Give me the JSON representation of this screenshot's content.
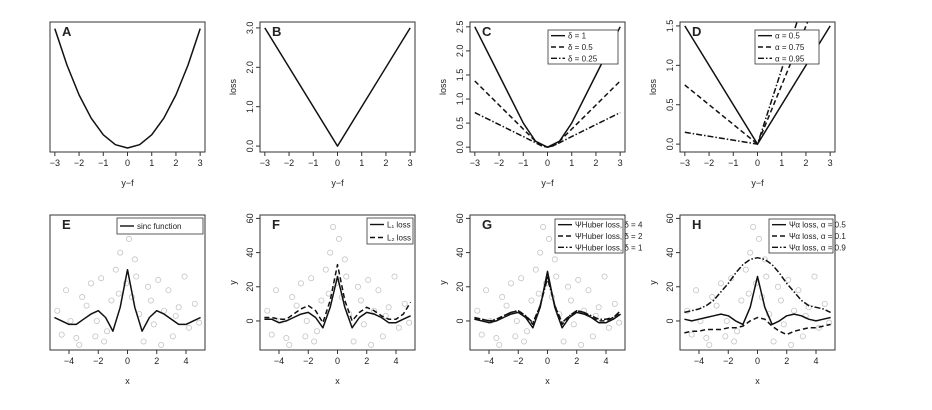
{
  "chart_data": [
    {
      "type": "line",
      "panel": "A",
      "xlabel": "y−f",
      "ylabel": "",
      "xlim": [
        -3.2,
        3.2
      ],
      "ylim": [
        -0.3,
        9.5
      ],
      "xticks": [
        -3,
        -2,
        -1,
        0,
        1,
        2,
        3
      ],
      "yticks": [],
      "legend": null,
      "series": [
        {
          "style": "solid",
          "x": [
            -3,
            -2.5,
            -2,
            -1.5,
            -1,
            -0.5,
            0,
            0.5,
            1,
            1.5,
            2,
            2.5,
            3
          ],
          "y": [
            9,
            6.25,
            4,
            2.25,
            1,
            0.25,
            0,
            0.25,
            1,
            2.25,
            4,
            6.25,
            9
          ]
        }
      ]
    },
    {
      "type": "line",
      "panel": "B",
      "xlabel": "y−f",
      "ylabel": "loss",
      "xlim": [
        -3.2,
        3.2
      ],
      "ylim": [
        -0.15,
        3.15
      ],
      "xticks": [
        -3,
        -2,
        -1,
        0,
        1,
        2,
        3
      ],
      "yticks": [
        0.0,
        1.0,
        2.0,
        3.0
      ],
      "ytick_labels": [
        "0.0",
        "1.0",
        "2.0",
        "3.0"
      ],
      "legend": null,
      "series": [
        {
          "style": "solid",
          "x": [
            -3,
            0,
            3
          ],
          "y": [
            3,
            0,
            3
          ]
        }
      ]
    },
    {
      "type": "line",
      "panel": "C",
      "xlabel": "y−f",
      "ylabel": "loss",
      "xlim": [
        -3.2,
        3.2
      ],
      "ylim": [
        -0.1,
        2.6
      ],
      "xticks": [
        -3,
        -2,
        -1,
        0,
        1,
        2,
        3
      ],
      "yticks": [
        0.0,
        0.5,
        1.0,
        1.5,
        2.0,
        2.5
      ],
      "ytick_labels": [
        "0.0",
        "0.5",
        "1.0",
        "1.5",
        "2.0",
        "2.5"
      ],
      "legend": {
        "position": "top-center"
      },
      "series": [
        {
          "name": "δ = 1",
          "style": "solid",
          "x": [
            -3,
            -2,
            -1,
            -0.5,
            0,
            0.5,
            1,
            2,
            3
          ],
          "y": [
            2.5,
            1.5,
            0.5,
            0.125,
            0,
            0.125,
            0.5,
            1.5,
            2.5
          ]
        },
        {
          "name": "δ = 0.5",
          "style": "dashed",
          "x": [
            -3,
            -2,
            -1,
            -0.5,
            -0.25,
            0,
            0.25,
            0.5,
            1,
            2,
            3
          ],
          "y": [
            1.375,
            0.875,
            0.375,
            0.125,
            0.031,
            0,
            0.031,
            0.125,
            0.375,
            0.875,
            1.375
          ]
        },
        {
          "name": "δ = 0.25",
          "style": "dotdash",
          "x": [
            -3,
            -2,
            -1,
            -0.25,
            0,
            0.25,
            1,
            2,
            3
          ],
          "y": [
            0.719,
            0.469,
            0.219,
            0.031,
            0,
            0.031,
            0.219,
            0.469,
            0.719
          ]
        }
      ]
    },
    {
      "type": "line",
      "panel": "D",
      "xlabel": "y−f",
      "ylabel": "loss",
      "xlim": [
        -3.2,
        3.2
      ],
      "ylim": [
        -0.1,
        1.55
      ],
      "xticks": [
        -3,
        -2,
        -1,
        0,
        1,
        2,
        3
      ],
      "yticks": [
        0.0,
        0.5,
        1.0,
        1.5
      ],
      "ytick_labels": [
        "0.0",
        "0.5",
        "1.0",
        "1.5"
      ],
      "legend": {
        "position": "top-center"
      },
      "series": [
        {
          "name": "α = 0.5",
          "style": "solid",
          "x": [
            -3,
            0,
            3
          ],
          "y": [
            1.5,
            0,
            1.5
          ]
        },
        {
          "name": "α = 0.75",
          "style": "dashed",
          "x": [
            -3,
            0,
            2.07
          ],
          "y": [
            0.75,
            0,
            1.55
          ]
        },
        {
          "name": "α = 0.95",
          "style": "dotdash",
          "x": [
            -3,
            0,
            1.63
          ],
          "y": [
            0.15,
            0,
            1.55
          ]
        }
      ]
    },
    {
      "type": "scatter+line",
      "panel": "E",
      "xlabel": "x",
      "ylabel": "",
      "xlim": [
        -5.3,
        5.3
      ],
      "ylim": [
        -17,
        62
      ],
      "xticks": [
        -4,
        -2,
        0,
        2,
        4
      ],
      "yticks": [],
      "legend": {
        "position": "top-right"
      },
      "series": [
        {
          "name": "sinc function",
          "style": "solid",
          "x": [
            -5,
            -4.5,
            -4,
            -3.5,
            -3,
            -2.5,
            -2,
            -1.5,
            -1,
            -0.5,
            0,
            0.5,
            1,
            1.5,
            2,
            2.5,
            3,
            3.5,
            4,
            4.5,
            5
          ],
          "y": [
            2,
            0,
            -2,
            -2,
            1,
            4,
            6,
            2,
            -6,
            8,
            30,
            8,
            -6,
            2,
            6,
            4,
            1,
            -2,
            -2,
            0,
            2
          ]
        }
      ],
      "scatter": {
        "x": [
          -4.8,
          -4.5,
          -4.2,
          -3.9,
          -3.5,
          -3.1,
          -2.8,
          -2.5,
          -2.1,
          -1.8,
          -1.4,
          -1.1,
          -0.8,
          -0.5,
          -0.3,
          -0.1,
          0.1,
          0.3,
          0.5,
          0.8,
          1.1,
          1.4,
          1.8,
          2.1,
          2.5,
          2.8,
          3.1,
          3.5,
          3.9,
          4.2,
          4.6,
          4.9,
          -3.3,
          -1.6,
          -0.6,
          0.6,
          1.6,
          3.3,
          -2.2,
          2.3
        ],
        "y": [
          6,
          -8,
          18,
          0,
          -10,
          14,
          9,
          22,
          0,
          25,
          -6,
          12,
          30,
          40,
          55,
          22,
          48,
          14,
          36,
          4,
          -12,
          20,
          -2,
          24,
          6,
          18,
          -9,
          8,
          26,
          -4,
          10,
          -1,
          -14,
          -12,
          16,
          26,
          12,
          3,
          -9,
          -14
        ]
      }
    },
    {
      "type": "scatter+line",
      "panel": "F",
      "xlabel": "x",
      "ylabel": "y",
      "xlim": [
        -5.3,
        5.3
      ],
      "ylim": [
        -17,
        62
      ],
      "xticks": [
        -4,
        -2,
        0,
        2,
        4
      ],
      "yticks": [
        0,
        20,
        40,
        60
      ],
      "ytick_labels": [
        "0",
        "20",
        "40",
        "60"
      ],
      "legend": {
        "position": "top-right"
      },
      "series": [
        {
          "name": "L₁ loss",
          "style": "solid",
          "x": [
            -5,
            -4.5,
            -4,
            -3.5,
            -3,
            -2.5,
            -2,
            -1.5,
            -1,
            -0.5,
            0,
            0.5,
            1,
            1.5,
            2,
            2.5,
            3,
            3.5,
            4,
            4.5,
            5
          ],
          "y": [
            1,
            1,
            -1,
            0,
            2,
            4,
            5,
            2,
            -4,
            8,
            26,
            8,
            -4,
            2,
            5,
            4,
            2,
            -1,
            -1,
            1,
            3
          ]
        },
        {
          "name": "L₂ loss",
          "style": "dashed",
          "x": [
            -5,
            -4.5,
            -4,
            -3.5,
            -3,
            -2.5,
            -2,
            -1.5,
            -1,
            -0.5,
            0,
            0.5,
            1,
            1.5,
            2,
            2.5,
            3,
            3.5,
            4,
            4.5,
            5
          ],
          "y": [
            2,
            2,
            1,
            1,
            4,
            7,
            9,
            6,
            -1,
            12,
            33,
            12,
            0,
            5,
            8,
            6,
            3,
            1,
            1,
            4,
            11
          ]
        }
      ],
      "scatter": {
        "x": [
          -4.8,
          -4.5,
          -4.2,
          -3.9,
          -3.5,
          -3.1,
          -2.8,
          -2.5,
          -2.1,
          -1.8,
          -1.4,
          -1.1,
          -0.8,
          -0.5,
          -0.3,
          -0.1,
          0.1,
          0.3,
          0.5,
          0.8,
          1.1,
          1.4,
          1.8,
          2.1,
          2.5,
          2.8,
          3.1,
          3.5,
          3.9,
          4.2,
          4.6,
          4.9,
          -3.3,
          -1.6,
          -0.6,
          0.6,
          1.6,
          3.3,
          -2.2,
          2.3
        ],
        "y": [
          6,
          -8,
          18,
          0,
          -10,
          14,
          9,
          22,
          0,
          25,
          -6,
          12,
          30,
          40,
          55,
          22,
          48,
          14,
          36,
          4,
          -12,
          20,
          -2,
          24,
          6,
          18,
          -9,
          8,
          26,
          -4,
          10,
          -1,
          -14,
          -12,
          16,
          26,
          12,
          3,
          -9,
          -14
        ]
      }
    },
    {
      "type": "scatter+line",
      "panel": "G",
      "xlabel": "x",
      "ylabel": "y",
      "xlim": [
        -5.3,
        5.3
      ],
      "ylim": [
        -17,
        62
      ],
      "xticks": [
        -4,
        -2,
        0,
        2,
        4
      ],
      "yticks": [
        0,
        20,
        40,
        60
      ],
      "ytick_labels": [
        "0",
        "20",
        "40",
        "60"
      ],
      "legend": {
        "position": "top-right"
      },
      "series": [
        {
          "name": "ΨHuber loss,  δ = 4",
          "style": "solid",
          "x": [
            -5,
            -4.5,
            -4,
            -3.5,
            -3,
            -2.5,
            -2,
            -1.5,
            -1,
            -0.5,
            0,
            0.5,
            1,
            1.5,
            2,
            2.5,
            3,
            3.5,
            4,
            4.5,
            5
          ],
          "y": [
            1,
            0,
            -1,
            0,
            2,
            4,
            5,
            2,
            -4,
            8,
            29,
            8,
            -4,
            2,
            5,
            4,
            2,
            -1,
            -1,
            1,
            4
          ]
        },
        {
          "name": "ΨHuber loss,  δ = 2",
          "style": "dashed",
          "x": [
            -5,
            -4.5,
            -4,
            -3.5,
            -3,
            -2.5,
            -2,
            -1.5,
            -1,
            -0.5,
            0,
            0.5,
            1,
            1.5,
            2,
            2.5,
            3,
            3.5,
            4,
            4.5,
            5
          ],
          "y": [
            1,
            1,
            0,
            0,
            3,
            5,
            6,
            3,
            -2,
            9,
            27,
            9,
            -2,
            3,
            6,
            5,
            2,
            0,
            0,
            2,
            5
          ]
        },
        {
          "name": "ΨHuber loss,  δ = 1",
          "style": "dotdash",
          "x": [
            -5,
            -4.5,
            -4,
            -3.5,
            -3,
            -2.5,
            -2,
            -1.5,
            -1,
            -0.5,
            0,
            0.5,
            1,
            1.5,
            2,
            2.5,
            3,
            3.5,
            4,
            4.5,
            5
          ],
          "y": [
            2,
            1,
            0,
            1,
            3,
            5,
            6,
            3,
            -1,
            9,
            25,
            9,
            -1,
            3,
            6,
            5,
            3,
            1,
            1,
            2,
            6
          ]
        }
      ],
      "scatter": {
        "x": [
          -4.8,
          -4.5,
          -4.2,
          -3.9,
          -3.5,
          -3.1,
          -2.8,
          -2.5,
          -2.1,
          -1.8,
          -1.4,
          -1.1,
          -0.8,
          -0.5,
          -0.3,
          -0.1,
          0.1,
          0.3,
          0.5,
          0.8,
          1.1,
          1.4,
          1.8,
          2.1,
          2.5,
          2.8,
          3.1,
          3.5,
          3.9,
          4.2,
          4.6,
          4.9,
          -3.3,
          -1.6,
          -0.6,
          0.6,
          1.6,
          3.3,
          -2.2,
          2.3
        ],
        "y": [
          6,
          -8,
          18,
          0,
          -10,
          14,
          9,
          22,
          0,
          25,
          -6,
          12,
          30,
          40,
          55,
          22,
          48,
          14,
          36,
          4,
          -12,
          20,
          -2,
          24,
          6,
          18,
          -9,
          8,
          26,
          -4,
          10,
          -1,
          -14,
          -12,
          16,
          26,
          12,
          3,
          -9,
          -14
        ]
      }
    },
    {
      "type": "scatter+line",
      "panel": "H",
      "xlabel": "x",
      "ylabel": "y",
      "xlim": [
        -5.3,
        5.3
      ],
      "ylim": [
        -17,
        62
      ],
      "xticks": [
        -4,
        -2,
        0,
        2,
        4
      ],
      "yticks": [
        0,
        20,
        40,
        60
      ],
      "ytick_labels": [
        "0",
        "20",
        "40",
        "60"
      ],
      "legend": {
        "position": "top-right"
      },
      "series": [
        {
          "name": "Ψα loss,  α = 0.5",
          "style": "solid",
          "x": [
            -5,
            -4.5,
            -4,
            -3.5,
            -3,
            -2.5,
            -2,
            -1.5,
            -1,
            -0.5,
            0,
            0.5,
            1,
            1.5,
            2,
            2.5,
            3,
            3.5,
            4,
            4.5,
            5
          ],
          "y": [
            1,
            0,
            1,
            2,
            3,
            4,
            3,
            0,
            -2,
            8,
            26,
            8,
            -2,
            0,
            3,
            4,
            3,
            1,
            0,
            1,
            2
          ]
        },
        {
          "name": "Ψα loss,  α = 0.1",
          "style": "dashed",
          "x": [
            -5,
            -4.5,
            -4,
            -3.5,
            -3,
            -2.5,
            -2,
            -1.5,
            -1,
            -0.5,
            0,
            0.5,
            1,
            1.5,
            2,
            2.5,
            3,
            3.5,
            4,
            4.5,
            5
          ],
          "y": [
            -7,
            -6,
            -6,
            -5,
            -5,
            -5,
            -4,
            -4,
            -3,
            0,
            2,
            1,
            -3,
            -6,
            -8,
            -6,
            -5,
            -4,
            -4,
            -3,
            -2
          ]
        },
        {
          "name": "Ψα loss,  α = 0.9",
          "style": "dotdash",
          "x": [
            -5,
            -4.5,
            -4,
            -3.5,
            -3,
            -2.5,
            -2,
            -1.5,
            -1,
            -0.5,
            0,
            0.5,
            1,
            1.5,
            2,
            2.5,
            3,
            3.5,
            4,
            4.5,
            5
          ],
          "y": [
            5,
            6,
            7,
            9,
            12,
            17,
            22,
            28,
            33,
            36,
            37,
            36,
            33,
            28,
            22,
            17,
            12,
            9,
            8,
            7,
            5
          ]
        }
      ],
      "scatter": {
        "x": [
          -4.8,
          -4.5,
          -4.2,
          -3.9,
          -3.5,
          -3.1,
          -2.8,
          -2.5,
          -2.1,
          -1.8,
          -1.4,
          -1.1,
          -0.8,
          -0.5,
          -0.3,
          -0.1,
          0.1,
          0.3,
          0.5,
          0.8,
          1.1,
          1.4,
          1.8,
          2.1,
          2.5,
          2.8,
          3.1,
          3.5,
          3.9,
          4.2,
          4.6,
          4.9,
          -3.3,
          -1.6,
          -0.6,
          0.6,
          1.6,
          3.3,
          -2.2,
          2.3
        ],
        "y": [
          6,
          -8,
          18,
          0,
          -10,
          14,
          9,
          22,
          0,
          25,
          -6,
          12,
          30,
          40,
          55,
          22,
          48,
          14,
          36,
          4,
          -12,
          20,
          -2,
          24,
          6,
          18,
          -9,
          8,
          26,
          -4,
          10,
          -1,
          -14,
          -12,
          16,
          26,
          12,
          3,
          -9,
          -14
        ]
      }
    }
  ]
}
